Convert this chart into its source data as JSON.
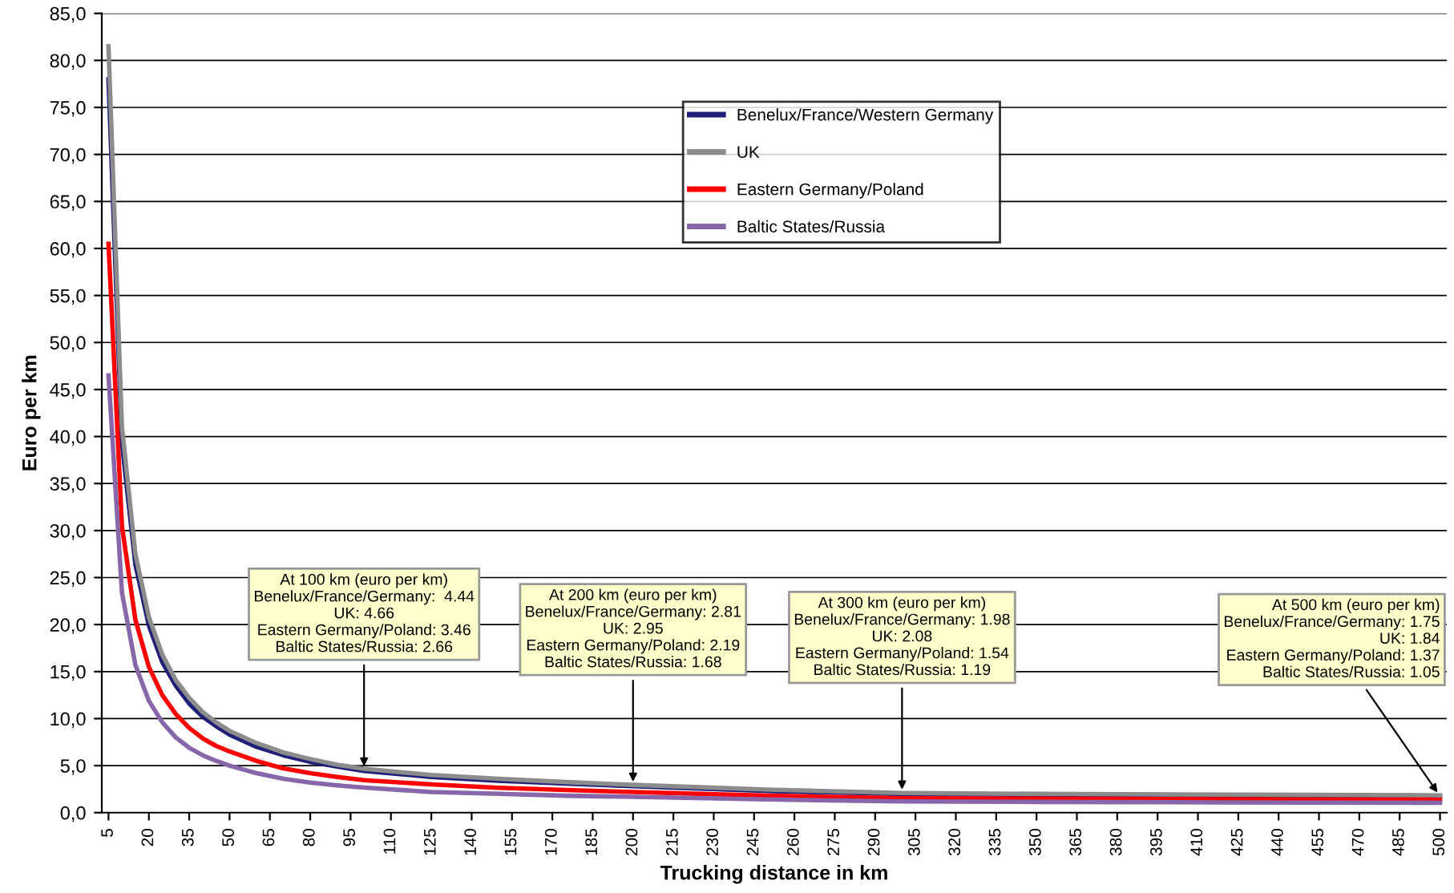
{
  "chart_data": {
    "type": "line",
    "xlabel": "Trucking distance in km",
    "ylabel": "Euro per km",
    "x": [
      5,
      10,
      15,
      20,
      25,
      30,
      35,
      40,
      45,
      50,
      60,
      70,
      80,
      90,
      100,
      125,
      150,
      175,
      200,
      250,
      300,
      350,
      400,
      450,
      500
    ],
    "series": [
      {
        "name": "Benelux/France/Western Germany",
        "color": "#1f1f7a",
        "values": [
          78,
          39.3,
          26.4,
          19.9,
          16.0,
          13.5,
          11.6,
          10.2,
          9.2,
          8.3,
          7.0,
          6.1,
          5.4,
          4.9,
          4.44,
          3.8,
          3.4,
          3.1,
          2.81,
          2.3,
          1.98,
          1.9,
          1.84,
          1.8,
          1.75
        ]
      },
      {
        "name": "UK",
        "color": "#8c8c8c",
        "values": [
          81.5,
          41,
          27.5,
          20.8,
          16.8,
          14.1,
          12.2,
          10.7,
          9.6,
          8.7,
          7.4,
          6.4,
          5.7,
          5.1,
          4.66,
          4.0,
          3.6,
          3.25,
          2.95,
          2.45,
          2.08,
          2.0,
          1.94,
          1.89,
          1.84
        ]
      },
      {
        "name": "Eastern Germany/Poland",
        "color": "#ff0000",
        "values": [
          60.5,
          30.5,
          20.5,
          15.5,
          12.5,
          10.5,
          9.0,
          7.9,
          7.1,
          6.5,
          5.5,
          4.7,
          4.2,
          3.8,
          3.46,
          3.0,
          2.65,
          2.4,
          2.19,
          1.8,
          1.54,
          1.48,
          1.44,
          1.4,
          1.37
        ]
      },
      {
        "name": "Baltic States/Russia",
        "color": "#8866aa",
        "values": [
          46.5,
          23.4,
          15.7,
          11.9,
          9.6,
          8.0,
          6.9,
          6.1,
          5.5,
          5.0,
          4.2,
          3.6,
          3.2,
          2.9,
          2.66,
          2.2,
          2.0,
          1.8,
          1.68,
          1.4,
          1.19,
          1.14,
          1.1,
          1.07,
          1.05
        ]
      }
    ],
    "xlim": [
      2.5,
      502.5
    ],
    "xticks": [
      5,
      20,
      35,
      50,
      65,
      80,
      95,
      110,
      125,
      140,
      155,
      170,
      185,
      200,
      215,
      230,
      245,
      260,
      275,
      290,
      305,
      320,
      335,
      350,
      365,
      380,
      395,
      410,
      425,
      440,
      455,
      470,
      485,
      500
    ],
    "ylim": [
      0,
      85
    ],
    "yticks": [
      {
        "value": 0,
        "label": "0,0"
      },
      {
        "value": 5,
        "label": "5,0"
      },
      {
        "value": 10,
        "label": "10,0"
      },
      {
        "value": 15,
        "label": "15,0"
      },
      {
        "value": 20,
        "label": "20,0"
      },
      {
        "value": 25,
        "label": "25,0"
      },
      {
        "value": 30,
        "label": "30,0"
      },
      {
        "value": 35,
        "label": "35,0"
      },
      {
        "value": 40,
        "label": "40,0"
      },
      {
        "value": 45,
        "label": "45,0"
      },
      {
        "value": 50,
        "label": "50,0"
      },
      {
        "value": 55,
        "label": "55,0"
      },
      {
        "value": 60,
        "label": "60,0"
      },
      {
        "value": 65,
        "label": "65,0"
      },
      {
        "value": 70,
        "label": "70,0"
      },
      {
        "value": 75,
        "label": "75,0"
      },
      {
        "value": 80,
        "label": "80,0"
      },
      {
        "value": 85,
        "label": "85,0"
      }
    ],
    "grid": "y",
    "legend": "top",
    "marker": "none",
    "line_style": "solid",
    "annotations": [
      {
        "text": "At 100 km (euro per km)\nBenelux/France/Germany:  4.44\nUK: 4.66\nEastern Germany/Poland: 3.46\nBaltic States/Russia: 2.66",
        "x": 100,
        "y": 4.44
      },
      {
        "text": "At 200 km (euro per km)\nBenelux/France/Germany: 2.81\nUK: 2.95\nEastern Germany/Poland: 2.19\nBaltic States/Russia: 1.68",
        "x": 200,
        "y": 2.81
      },
      {
        "text": "At 300 km (euro per km)\nBenelux/France/Germany: 1.98\nUK: 2.08\nEastern Germany/Poland: 1.54\nBaltic States/Russia: 1.19",
        "x": 300,
        "y": 1.98
      },
      {
        "text": "At 500 km (euro per km)\nBenelux/France/Germany: 1.75\nUK: 1.84\nEastern Germany/Poland: 1.37\nBaltic States/Russia: 1.05",
        "x": 500,
        "y": 1.75
      }
    ]
  }
}
